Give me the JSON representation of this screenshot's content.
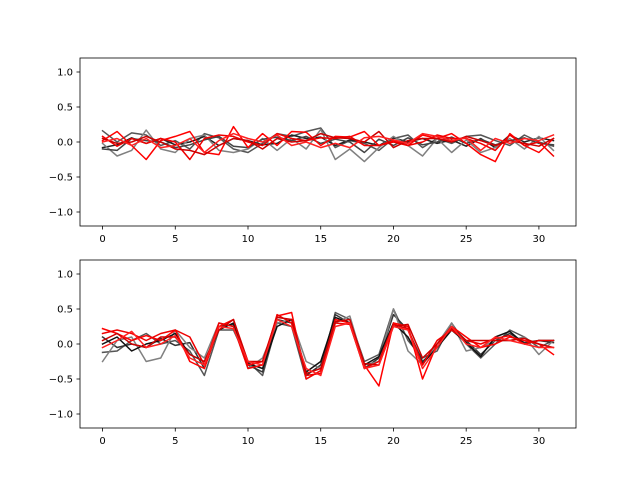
{
  "chart_data": [
    {
      "type": "line",
      "title": "",
      "xlabel": "",
      "ylabel": "",
      "xlim": [
        -1.55,
        32.55
      ],
      "ylim": [
        -1.2,
        1.2
      ],
      "xticks": [
        0,
        5,
        10,
        15,
        20,
        25,
        30
      ],
      "xtick_labels": [
        "0",
        "5",
        "10",
        "15",
        "20",
        "25",
        "30"
      ],
      "yticks": [
        -1.0,
        -0.5,
        0.0,
        0.5,
        1.0
      ],
      "ytick_labels": [
        "−1.0",
        "−0.5",
        "0.0",
        "0.5",
        "1.0"
      ],
      "grid": false,
      "series": [
        {
          "color": "#555555",
          "values": [
            0.16,
            0.0,
            0.13,
            0.1,
            -0.05,
            0.02,
            -0.1,
            0.12,
            0.06,
            -0.1,
            -0.15,
            -0.02,
            0.12,
            0.08,
            0.15,
            0.2,
            -0.08,
            0.02,
            -0.02,
            -0.12,
            0.05,
            0.1,
            -0.08,
            0.05,
            -0.02,
            0.08,
            0.1,
            0.02,
            -0.05,
            0.1,
            0.0,
            -0.06
          ]
        },
        {
          "color": "#222222",
          "values": [
            -0.08,
            -0.04,
            0.06,
            -0.02,
            0.05,
            -0.04,
            0.0,
            0.08,
            -0.05,
            0.05,
            0.02,
            -0.04,
            -0.02,
            0.1,
            0.05,
            0.07,
            -0.05,
            0.03,
            0.0,
            -0.05,
            0.06,
            0.0,
            0.05,
            -0.02,
            0.03,
            -0.06,
            0.05,
            -0.08,
            0.1,
            0.0,
            0.06,
            0.02
          ]
        },
        {
          "color": "#808080",
          "values": [
            -0.02,
            -0.2,
            -0.12,
            0.17,
            -0.1,
            -0.15,
            0.05,
            0.1,
            -0.12,
            -0.15,
            -0.1,
            0.05,
            -0.12,
            0.05,
            -0.1,
            0.18,
            -0.25,
            -0.1,
            -0.28,
            -0.08,
            0.08,
            -0.05,
            -0.2,
            0.05,
            -0.15,
            0.03,
            -0.15,
            -0.08,
            0.05,
            -0.1,
            0.08,
            -0.12
          ]
        },
        {
          "color": "#444444",
          "values": [
            -0.1,
            -0.12,
            0.05,
            0.02,
            0.0,
            -0.08,
            -0.04,
            0.03,
            0.08,
            -0.06,
            -0.08,
            0.04,
            0.07,
            0.02,
            0.08,
            -0.02,
            0.04,
            0.0,
            -0.15,
            0.04,
            -0.05,
            0.06,
            -0.04,
            0.0,
            0.07,
            -0.02,
            0.04,
            -0.04,
            0.02,
            0.06,
            -0.02,
            -0.04
          ]
        },
        {
          "color": "#ff0000",
          "values": [
            0.02,
            0.15,
            -0.05,
            -0.25,
            0.02,
            0.08,
            0.15,
            -0.15,
            -0.18,
            0.22,
            -0.08,
            0.12,
            -0.05,
            0.15,
            0.14,
            -0.05,
            0.08,
            0.07,
            0.15,
            -0.05,
            0.02,
            -0.05,
            0.1,
            0.05,
            0.12,
            -0.02,
            -0.18,
            -0.28,
            0.12,
            -0.05,
            -0.15,
            0.05
          ]
        },
        {
          "color": "#ee0000",
          "values": [
            0.08,
            -0.06,
            0.05,
            -0.02,
            0.05,
            0.0,
            -0.25,
            0.05,
            0.1,
            0.08,
            0.0,
            -0.05,
            0.12,
            0.05,
            0.02,
            0.06,
            0.05,
            0.08,
            -0.05,
            -0.05,
            0.0,
            -0.05,
            0.0,
            0.1,
            0.05,
            0.05,
            -0.02,
            -0.12,
            0.1,
            -0.05,
            0.0,
            -0.2
          ]
        },
        {
          "color": "#cc0000",
          "values": [
            0.05,
            -0.02,
            0.0,
            0.08,
            0.0,
            -0.1,
            -0.12,
            -0.18,
            -0.05,
            0.05,
            0.02,
            -0.1,
            0.05,
            0.0,
            0.02,
            0.12,
            0.06,
            0.05,
            0.0,
            0.15,
            -0.08,
            0.02,
            0.05,
            0.05,
            0.0,
            0.08,
            0.02,
            -0.05,
            0.02,
            -0.02,
            -0.06,
            0.05
          ]
        },
        {
          "color": "#ff2020",
          "values": [
            0.0,
            0.05,
            -0.05,
            0.05,
            -0.08,
            -0.05,
            0.05,
            -0.15,
            0.02,
            0.12,
            0.05,
            0.0,
            0.1,
            -0.05,
            0.0,
            -0.08,
            -0.02,
            -0.08,
            0.06,
            0.08,
            0.03,
            -0.02,
            0.12,
            0.08,
            0.02,
            0.06,
            -0.12,
            0.05,
            -0.02,
            0.05,
            0.02,
            0.1
          ]
        }
      ]
    },
    {
      "type": "line",
      "title": "",
      "xlabel": "",
      "ylabel": "",
      "xlim": [
        -1.55,
        32.55
      ],
      "ylim": [
        -1.2,
        1.2
      ],
      "xticks": [
        0,
        5,
        10,
        15,
        20,
        25,
        30
      ],
      "xtick_labels": [
        "0",
        "5",
        "10",
        "15",
        "20",
        "25",
        "30"
      ],
      "yticks": [
        -1.0,
        -0.5,
        0.0,
        0.5,
        1.0
      ],
      "ytick_labels": [
        "−1.0",
        "−0.5",
        "0.0",
        "0.5",
        "1.0"
      ],
      "grid": false,
      "series": [
        {
          "color": "#555555",
          "values": [
            -0.12,
            -0.1,
            0.05,
            0.15,
            0.0,
            0.05,
            -0.1,
            -0.45,
            0.2,
            0.2,
            -0.25,
            -0.45,
            0.3,
            0.25,
            -0.5,
            -0.38,
            0.45,
            0.35,
            -0.25,
            -0.15,
            0.5,
            0.05,
            -0.2,
            -0.1,
            0.3,
            0.0,
            -0.2,
            0.0,
            0.2,
            0.1,
            -0.05,
            0.05
          ]
        },
        {
          "color": "#333333",
          "values": [
            0.1,
            -0.05,
            0.0,
            -0.05,
            0.08,
            -0.02,
            0.02,
            -0.35,
            0.25,
            0.28,
            -0.3,
            -0.4,
            0.35,
            0.3,
            -0.45,
            -0.3,
            0.42,
            0.3,
            -0.35,
            -0.2,
            0.42,
            0.2,
            -0.25,
            -0.05,
            0.25,
            0.05,
            -0.15,
            0.05,
            0.15,
            0.02,
            0.05,
            0.02
          ]
        },
        {
          "color": "#808080",
          "values": [
            -0.25,
            0.05,
            0.1,
            -0.25,
            -0.2,
            0.2,
            -0.05,
            -0.2,
            0.3,
            0.25,
            -0.35,
            -0.2,
            0.3,
            0.35,
            -0.25,
            -0.35,
            0.3,
            0.4,
            -0.3,
            -0.25,
            0.5,
            -0.1,
            -0.3,
            0.0,
            0.3,
            -0.1,
            -0.05,
            0.05,
            0.05,
            0.1,
            -0.15,
            0.05
          ]
        },
        {
          "color": "#111111",
          "values": [
            0.0,
            0.1,
            -0.1,
            0.0,
            0.05,
            0.15,
            -0.15,
            -0.25,
            0.2,
            0.3,
            -0.28,
            -0.35,
            0.25,
            0.35,
            -0.4,
            -0.25,
            0.38,
            0.3,
            -0.3,
            -0.18,
            0.3,
            0.1,
            -0.28,
            -0.05,
            0.2,
            0.02,
            -0.18,
            0.1,
            0.18,
            0.0,
            0.05,
            0.05
          ]
        },
        {
          "color": "#ff0000",
          "values": [
            0.22,
            0.15,
            0.05,
            0.12,
            0.05,
            0.2,
            -0.25,
            -0.35,
            0.25,
            0.35,
            -0.3,
            -0.25,
            0.4,
            0.45,
            -0.5,
            -0.38,
            0.35,
            0.3,
            -0.3,
            -0.6,
            0.3,
            0.25,
            -0.5,
            0.0,
            0.25,
            0.1,
            -0.05,
            0.0,
            0.1,
            0.05,
            0.0,
            -0.15
          ]
        },
        {
          "color": "#ee0000",
          "values": [
            0.15,
            0.2,
            0.15,
            0.05,
            0.15,
            0.2,
            0.1,
            -0.3,
            0.3,
            0.25,
            -0.35,
            -0.3,
            0.42,
            0.3,
            -0.45,
            -0.42,
            0.3,
            0.28,
            -0.35,
            -0.25,
            0.28,
            0.22,
            -0.3,
            0.05,
            0.2,
            0.05,
            0.0,
            0.08,
            0.12,
            0.0,
            0.05,
            0.05
          ]
        },
        {
          "color": "#cc0000",
          "values": [
            0.05,
            0.15,
            0.0,
            -0.05,
            0.1,
            0.1,
            -0.15,
            -0.25,
            0.2,
            0.35,
            -0.25,
            -0.25,
            0.38,
            0.35,
            -0.42,
            -0.35,
            0.32,
            0.35,
            -0.28,
            -0.3,
            0.25,
            0.28,
            -0.2,
            0.0,
            0.22,
            0.05,
            0.05,
            0.05,
            0.05,
            0.08,
            0.0,
            -0.05
          ]
        },
        {
          "color": "#ff2020",
          "values": [
            -0.05,
            0.05,
            0.18,
            -0.05,
            0.0,
            0.12,
            -0.2,
            -0.3,
            0.25,
            0.22,
            -0.25,
            -0.3,
            0.35,
            0.25,
            -0.35,
            -0.45,
            0.25,
            0.3,
            -0.35,
            -0.3,
            0.25,
            0.2,
            -0.35,
            -0.05,
            0.25,
            0.0,
            -0.05,
            0.1,
            0.05,
            0.0,
            -0.05,
            -0.05
          ]
        }
      ]
    }
  ]
}
